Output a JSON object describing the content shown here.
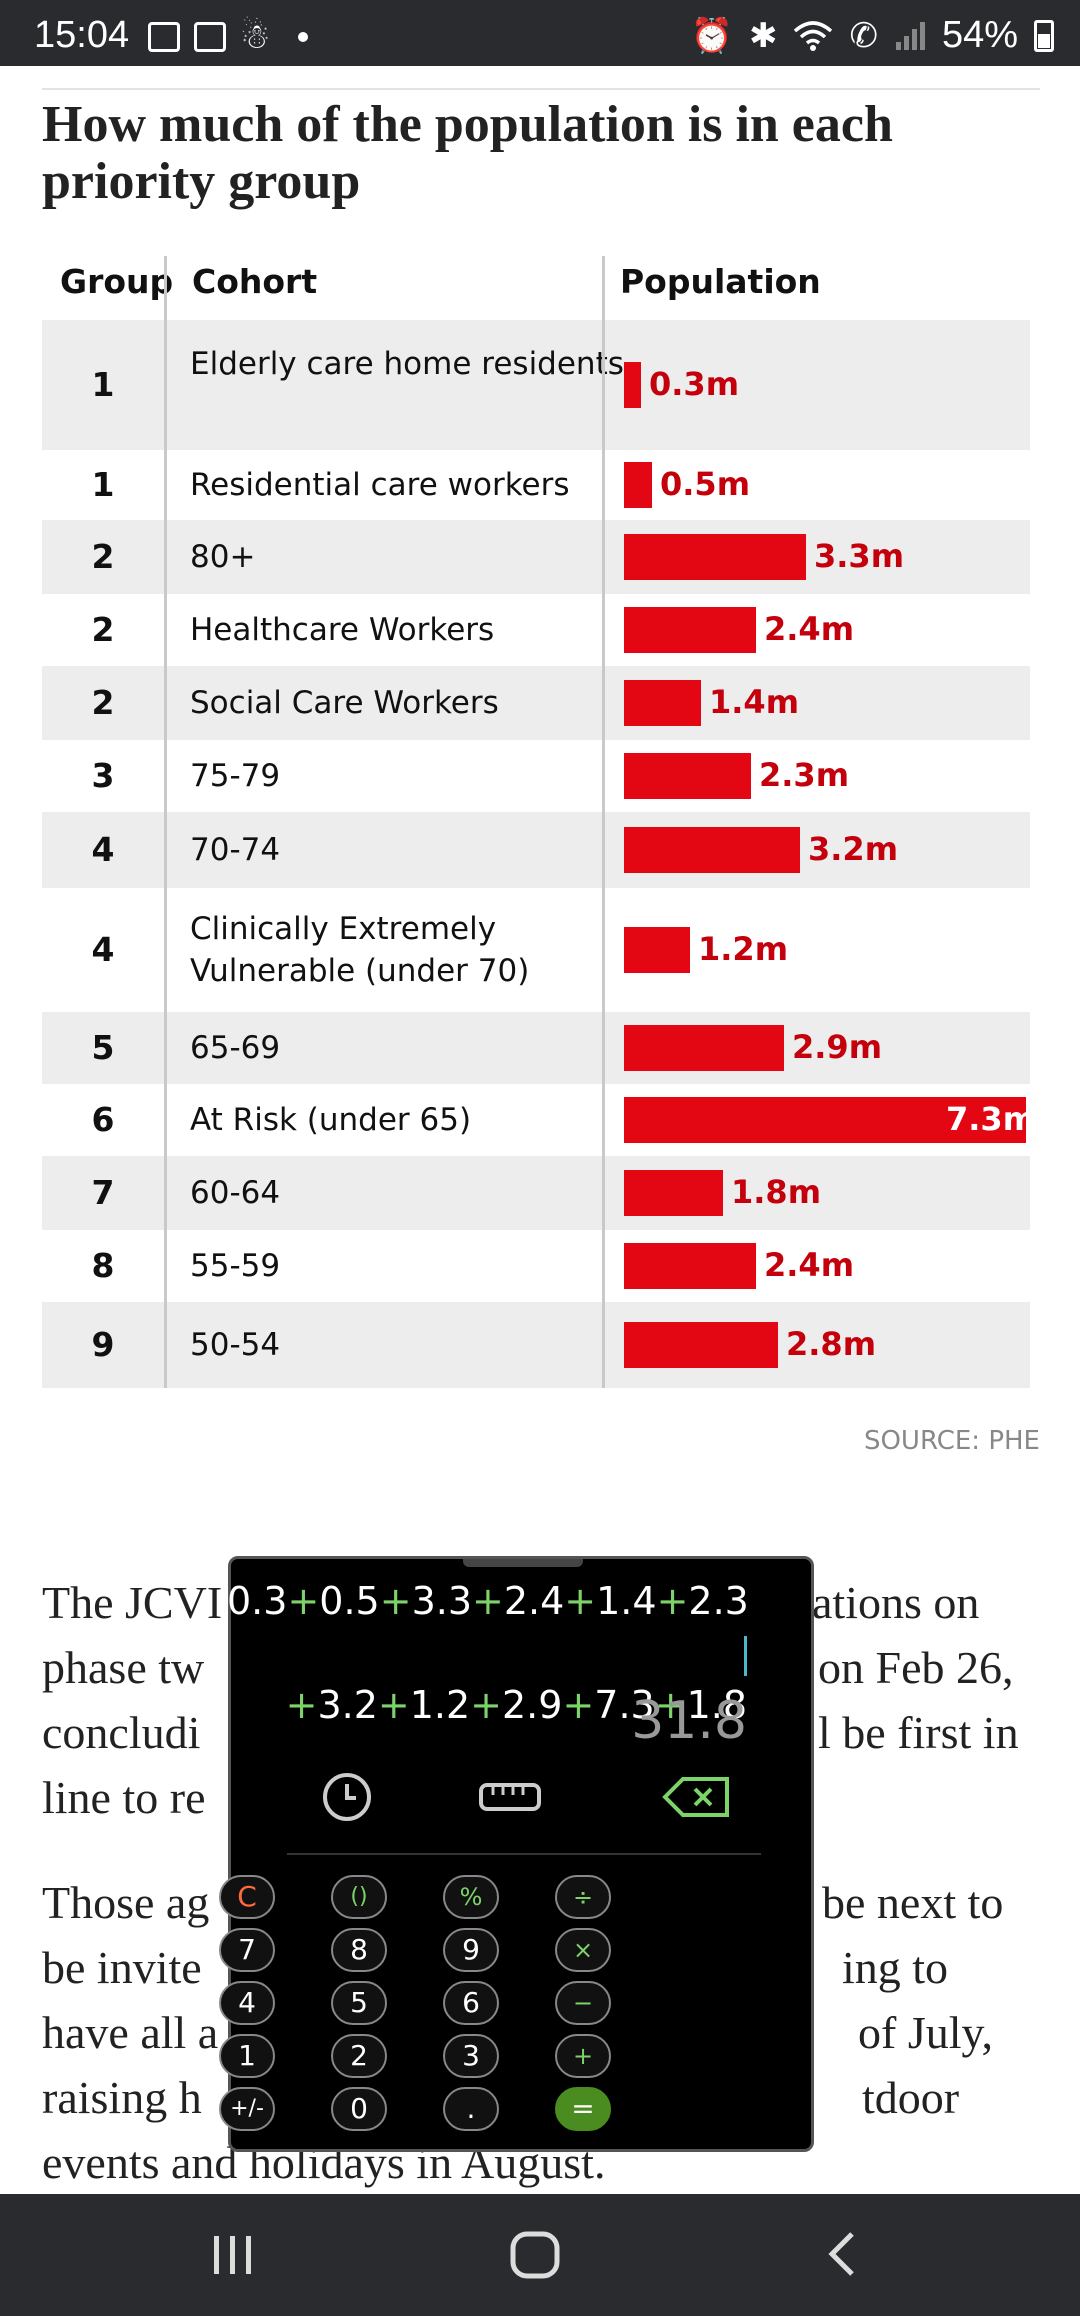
{
  "status_bar": {
    "time": "15:04",
    "battery": "54%",
    "left_icons": [
      "gallery-icon",
      "mail-icon",
      "accessibility-icon"
    ],
    "right_icons": [
      "alarm-icon",
      "bluetooth-icon",
      "wifi-icon",
      "wifi-calling-icon",
      "signal-icon",
      "battery-icon"
    ]
  },
  "chart": {
    "title": "How much of the population is in each priority group",
    "headers": {
      "group": "Group",
      "cohort": "Cohort",
      "population": "Population"
    },
    "source": "SOURCE: PHE"
  },
  "chart_data": {
    "type": "bar",
    "orientation": "horizontal",
    "title": "How much of the population is in each priority group",
    "unit": "m",
    "categories": [
      "Elderly care home residents",
      "Residential care workers",
      "80+",
      "Healthcare Workers",
      "Social Care Workers",
      "75-79",
      "70-74",
      "Clinically Extremely Vulnerable (under 70)",
      "65-69",
      "At Risk (under 65)",
      "60-64",
      "55-59",
      "50-54"
    ],
    "groups": [
      "1",
      "1",
      "2",
      "2",
      "2",
      "3",
      "4",
      "4",
      "5",
      "6",
      "7",
      "8",
      "9"
    ],
    "values": [
      0.3,
      0.5,
      3.3,
      2.4,
      1.4,
      2.3,
      3.2,
      1.2,
      2.9,
      7.3,
      1.8,
      2.4,
      2.8
    ],
    "labels": [
      "0.3m",
      "0.5m",
      "3.3m",
      "2.4m",
      "1.4m",
      "2.3m",
      "3.2m",
      "1.2m",
      "2.9m",
      "7.3m",
      "1.8m",
      "2.4m",
      "2.8m"
    ],
    "xlim": [
      0,
      7.3
    ],
    "colors": {
      "bar": "#e30613",
      "label": "#c4000c"
    }
  },
  "article": {
    "p1_visible": [
      "The JCVI",
      "ations on",
      "phase tw",
      "on Feb 26,",
      "concludi",
      "l be first in",
      "line to re"
    ],
    "p2_visible": [
      "Those ag",
      "be next to",
      "be invite",
      "ing to",
      "have all a",
      "of July,",
      "raising h",
      "tdoor",
      "events and holidays in August."
    ]
  },
  "calculator": {
    "expression_line1": [
      "0.3",
      "0.5",
      "3.3",
      "2.4",
      "1.4",
      "2.3"
    ],
    "expression_line2": [
      "3.2",
      "1.2",
      "2.9",
      "7.3",
      "1.8"
    ],
    "result": "31.8",
    "tools": [
      "history-icon",
      "unit-converter-icon",
      "backspace-icon"
    ],
    "keys": [
      [
        "C",
        "()",
        "%",
        "÷"
      ],
      [
        "7",
        "8",
        "9",
        "×"
      ],
      [
        "4",
        "5",
        "6",
        "−"
      ],
      [
        "1",
        "2",
        "3",
        "+"
      ],
      [
        "+/-",
        "0",
        ".",
        "="
      ]
    ],
    "colors": {
      "operator": "#7dd36a",
      "clear": "#ff6a3d",
      "equals": "#4a8c1f"
    }
  },
  "nav_bar": {
    "buttons": [
      "recent-apps-icon",
      "home-icon",
      "back-icon"
    ]
  }
}
